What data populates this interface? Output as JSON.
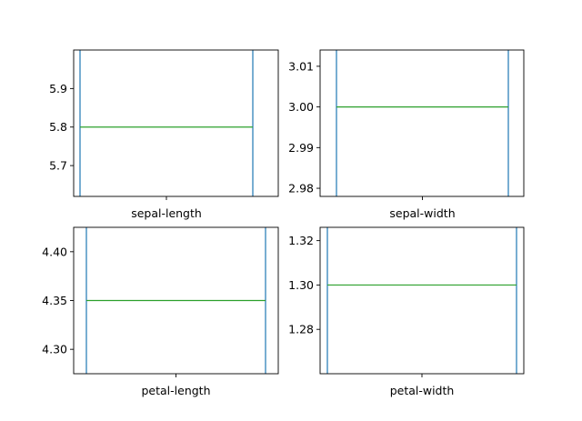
{
  "colors": {
    "box": "#1f77b4",
    "median": "#2ca02c",
    "frame": "#000000",
    "background": "#ffffff"
  },
  "chart_data": [
    {
      "type": "box",
      "xlabel": "sepal-length",
      "median": 5.8,
      "ylim": [
        5.62,
        6.0
      ],
      "yticks": [
        5.7,
        5.8,
        5.9
      ],
      "ytick_labels": [
        "5.7",
        "5.8",
        "5.9"
      ]
    },
    {
      "type": "box",
      "xlabel": "sepal-width",
      "median": 3.0,
      "ylim": [
        2.978,
        3.014
      ],
      "yticks": [
        2.98,
        2.99,
        3.0,
        3.01
      ],
      "ytick_labels": [
        "2.98",
        "2.99",
        "3.00",
        "3.01"
      ]
    },
    {
      "type": "box",
      "xlabel": "petal-length",
      "median": 4.35,
      "ylim": [
        4.275,
        4.425
      ],
      "yticks": [
        4.3,
        4.35,
        4.4
      ],
      "ytick_labels": [
        "4.30",
        "4.35",
        "4.40"
      ]
    },
    {
      "type": "box",
      "xlabel": "petal-width",
      "median": 1.3,
      "ylim": [
        1.26,
        1.326
      ],
      "yticks": [
        1.28,
        1.3,
        1.32
      ],
      "ytick_labels": [
        "1.28",
        "1.30",
        "1.32"
      ]
    }
  ]
}
